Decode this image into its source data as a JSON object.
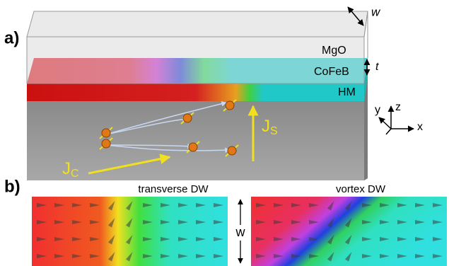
{
  "panel_a": {
    "label": "a)",
    "width_label": "w",
    "layers": {
      "top": "MgO",
      "thickness_label": "t",
      "middle": "CoFeB",
      "bottom": "HM"
    },
    "axes": {
      "y": "y",
      "z": "z",
      "x": "x"
    },
    "spin_current": {
      "main": "J",
      "sub": "S"
    },
    "charge_current": {
      "main": "J",
      "sub": "C"
    }
  },
  "panel_b": {
    "label": "b)",
    "left_title": "transverse DW",
    "right_title": "vortex DW",
    "width_label": "w"
  }
}
